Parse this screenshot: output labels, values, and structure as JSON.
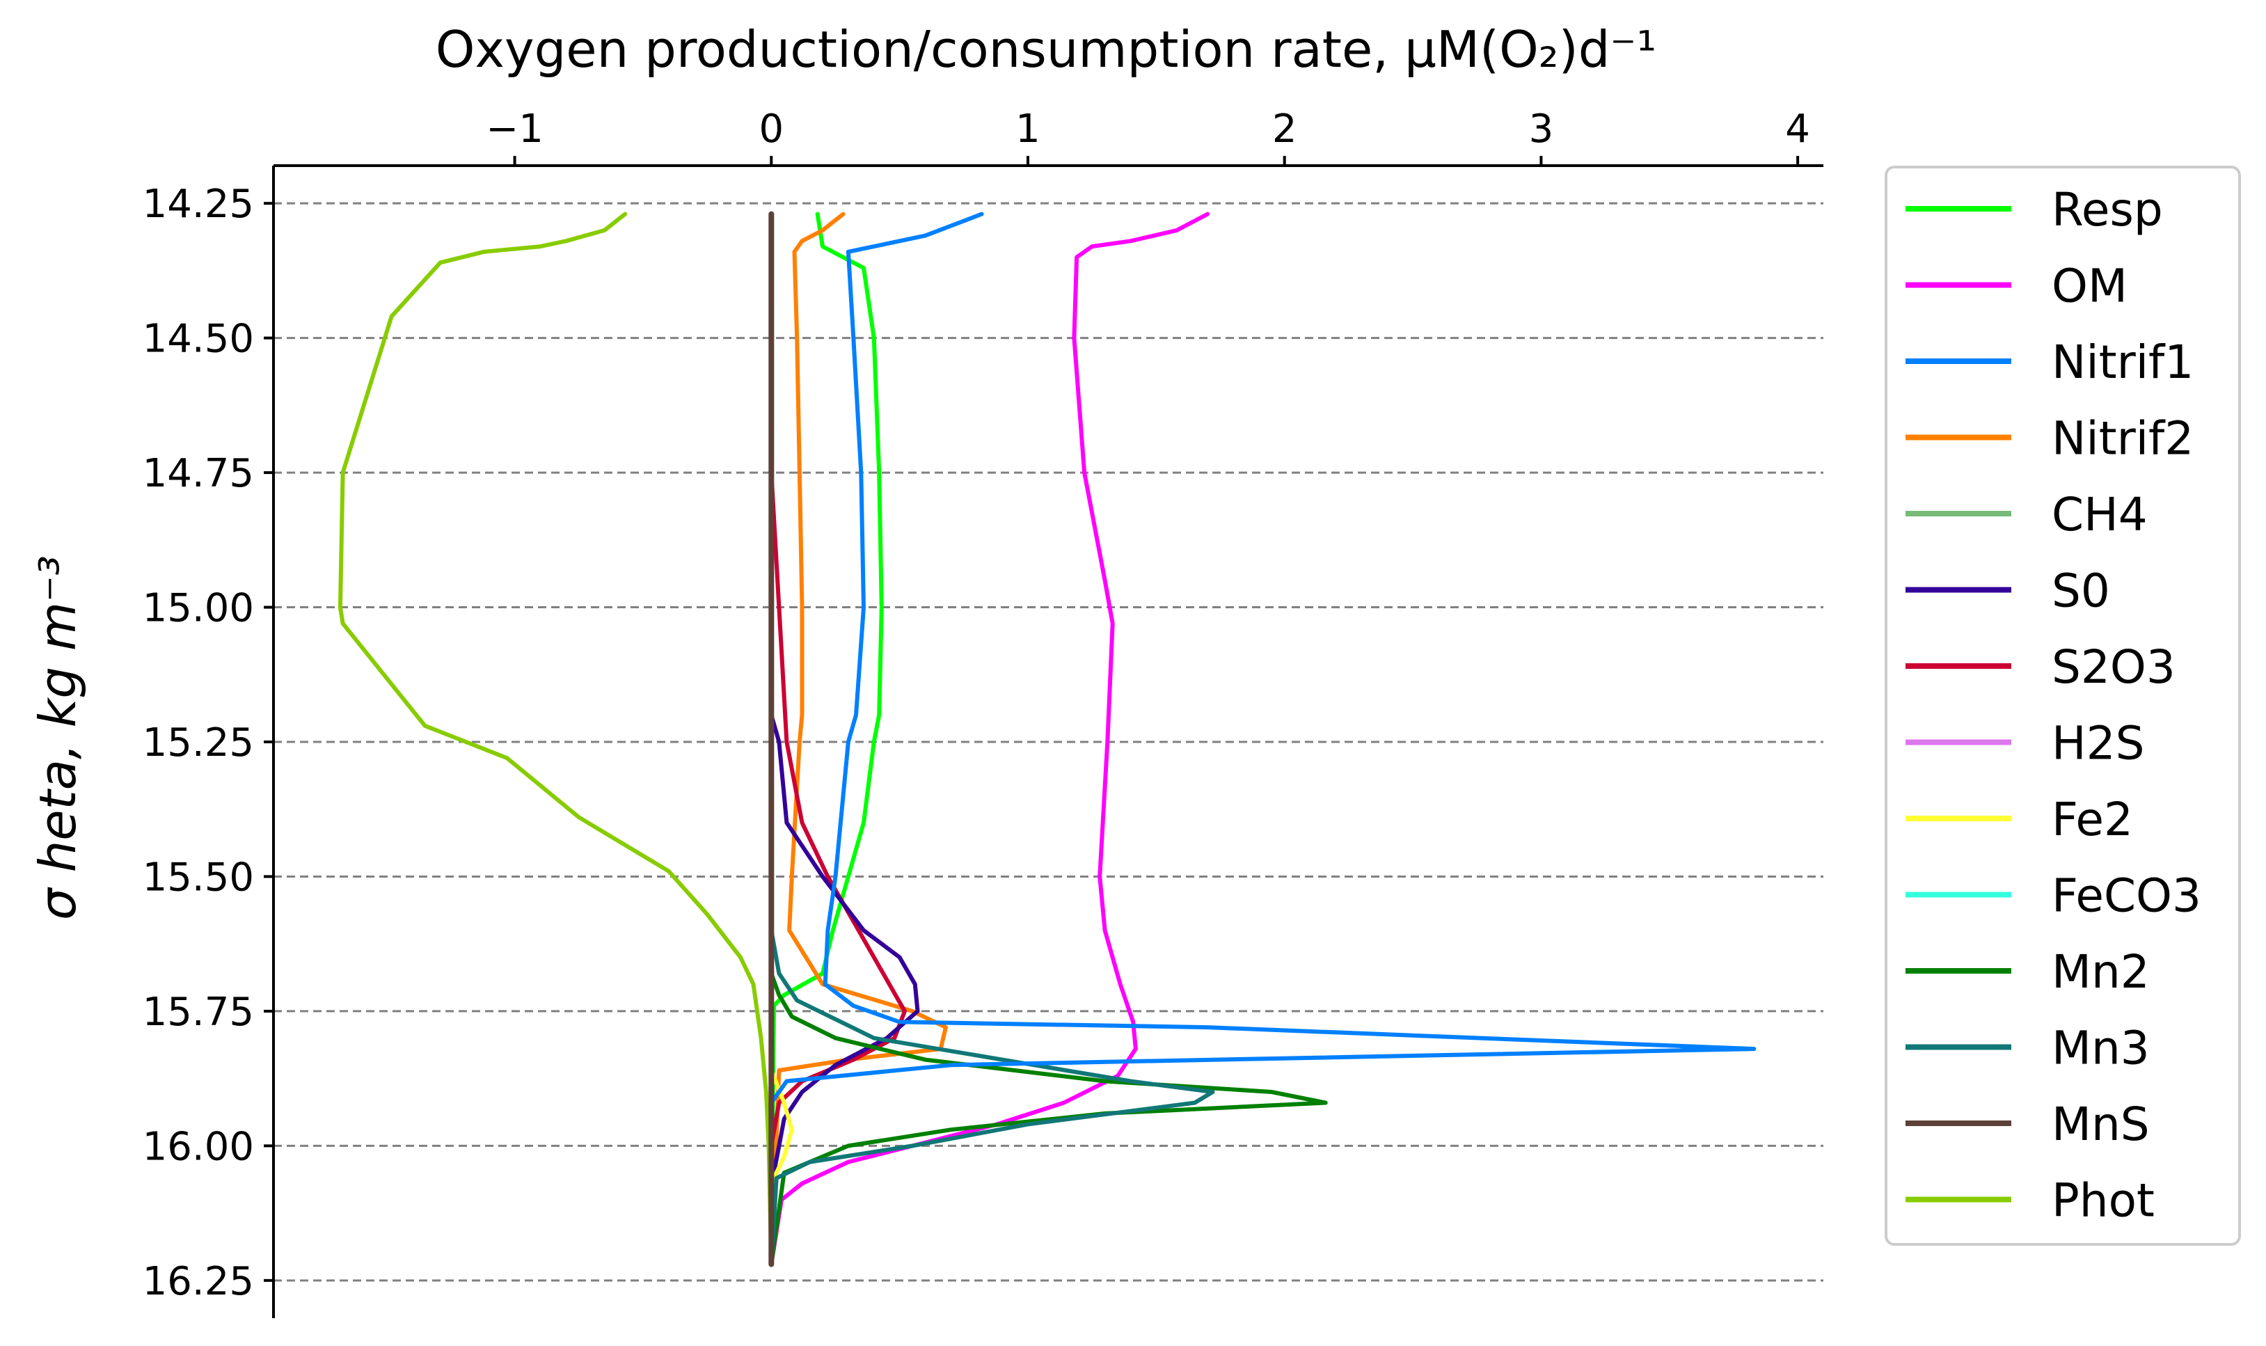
{
  "chart_data": {
    "type": "line",
    "title": "",
    "xlabel": "Oxygen production/consumption rate, μM(O₂)d⁻¹",
    "ylabel": "σ heta, kg m⁻³",
    "xlim": [
      -1.94,
      4.1
    ],
    "ylim": [
      16.32,
      14.18
    ],
    "y_inverted": true,
    "x_axis_position": "top",
    "x_ticks": [
      -1,
      0,
      1,
      2,
      3,
      4
    ],
    "x_tick_labels": [
      "−1",
      "0",
      "1",
      "2",
      "3",
      "4"
    ],
    "y_ticks": [
      14.25,
      14.5,
      14.75,
      15.0,
      15.25,
      15.5,
      15.75,
      16.0,
      16.25
    ],
    "y_tick_labels": [
      "14.25",
      "14.50",
      "14.75",
      "15.00",
      "15.25",
      "15.50",
      "15.75",
      "16.00",
      "16.25"
    ],
    "grid": "horizontal dashed",
    "legend_position": "outside right",
    "series": [
      {
        "name": "Resp",
        "color": "#00ff00",
        "points": [
          [
            0.18,
            14.27
          ],
          [
            0.2,
            14.33
          ],
          [
            0.28,
            14.35
          ],
          [
            0.36,
            14.37
          ],
          [
            0.4,
            14.5
          ],
          [
            0.42,
            14.75
          ],
          [
            0.43,
            15.0
          ],
          [
            0.42,
            15.2
          ],
          [
            0.4,
            15.25
          ],
          [
            0.36,
            15.4
          ],
          [
            0.3,
            15.5
          ],
          [
            0.24,
            15.6
          ],
          [
            0.2,
            15.68
          ],
          [
            0.05,
            15.72
          ],
          [
            0.01,
            15.74
          ],
          [
            0.0,
            16.2
          ]
        ]
      },
      {
        "name": "OM",
        "color": "#ff00ff",
        "points": [
          [
            1.7,
            14.27
          ],
          [
            1.58,
            14.3
          ],
          [
            1.4,
            14.32
          ],
          [
            1.25,
            14.33
          ],
          [
            1.19,
            14.35
          ],
          [
            1.18,
            14.5
          ],
          [
            1.22,
            14.75
          ],
          [
            1.3,
            14.95
          ],
          [
            1.33,
            15.03
          ],
          [
            1.31,
            15.25
          ],
          [
            1.28,
            15.5
          ],
          [
            1.3,
            15.6
          ],
          [
            1.36,
            15.7
          ],
          [
            1.41,
            15.77
          ],
          [
            1.42,
            15.82
          ],
          [
            1.35,
            15.87
          ],
          [
            1.14,
            15.92
          ],
          [
            0.88,
            15.96
          ],
          [
            0.55,
            16.0
          ],
          [
            0.3,
            16.03
          ],
          [
            0.12,
            16.07
          ],
          [
            0.04,
            16.1
          ],
          [
            0.0,
            16.22
          ]
        ]
      },
      {
        "name": "Nitrif1",
        "color": "#0080ff",
        "points": [
          [
            0.82,
            14.27
          ],
          [
            0.6,
            14.31
          ],
          [
            0.4,
            14.33
          ],
          [
            0.3,
            14.34
          ],
          [
            0.32,
            14.5
          ],
          [
            0.35,
            14.75
          ],
          [
            0.36,
            15.0
          ],
          [
            0.33,
            15.2
          ],
          [
            0.3,
            15.25
          ],
          [
            0.25,
            15.5
          ],
          [
            0.22,
            15.6
          ],
          [
            0.21,
            15.7
          ],
          [
            0.32,
            15.74
          ],
          [
            0.5,
            15.77
          ],
          [
            1.7,
            15.78
          ],
          [
            3.83,
            15.82
          ],
          [
            0.7,
            15.85
          ],
          [
            0.06,
            15.88
          ],
          [
            0.0,
            15.92
          ],
          [
            0.0,
            16.22
          ]
        ]
      },
      {
        "name": "Nitrif2",
        "color": "#ff8000",
        "points": [
          [
            0.28,
            14.27
          ],
          [
            0.2,
            14.3
          ],
          [
            0.12,
            14.32
          ],
          [
            0.09,
            14.34
          ],
          [
            0.1,
            14.5
          ],
          [
            0.11,
            14.75
          ],
          [
            0.12,
            15.0
          ],
          [
            0.12,
            15.2
          ],
          [
            0.11,
            15.25
          ],
          [
            0.08,
            15.5
          ],
          [
            0.07,
            15.6
          ],
          [
            0.2,
            15.7
          ],
          [
            0.55,
            15.75
          ],
          [
            0.68,
            15.78
          ],
          [
            0.66,
            15.82
          ],
          [
            0.3,
            15.84
          ],
          [
            0.03,
            15.86
          ],
          [
            0.0,
            16.22
          ]
        ]
      },
      {
        "name": "CH4",
        "color": "#77bb77",
        "points": [
          [
            0.0,
            14.27
          ],
          [
            0.0,
            16.22
          ]
        ]
      },
      {
        "name": "S0",
        "color": "#330099",
        "points": [
          [
            0.0,
            15.2
          ],
          [
            0.03,
            15.25
          ],
          [
            0.06,
            15.4
          ],
          [
            0.2,
            15.5
          ],
          [
            0.36,
            15.6
          ],
          [
            0.5,
            15.65
          ],
          [
            0.56,
            15.7
          ],
          [
            0.57,
            15.75
          ],
          [
            0.45,
            15.8
          ],
          [
            0.25,
            15.85
          ],
          [
            0.12,
            15.9
          ],
          [
            0.05,
            15.95
          ],
          [
            0.03,
            16.0
          ],
          [
            0.01,
            16.05
          ],
          [
            0.0,
            16.22
          ]
        ]
      },
      {
        "name": "S2O3",
        "color": "#cc0033",
        "points": [
          [
            0.0,
            14.75
          ],
          [
            0.03,
            15.0
          ],
          [
            0.06,
            15.25
          ],
          [
            0.12,
            15.4
          ],
          [
            0.22,
            15.5
          ],
          [
            0.34,
            15.6
          ],
          [
            0.46,
            15.7
          ],
          [
            0.52,
            15.75
          ],
          [
            0.48,
            15.8
          ],
          [
            0.32,
            15.84
          ],
          [
            0.12,
            15.88
          ],
          [
            0.03,
            15.92
          ],
          [
            0.0,
            16.0
          ],
          [
            0.0,
            16.22
          ]
        ]
      },
      {
        "name": "H2S",
        "color": "#dd77ee",
        "points": [
          [
            0.0,
            15.5
          ],
          [
            0.0,
            16.22
          ]
        ]
      },
      {
        "name": "Fe2",
        "color": "#ffff33",
        "points": [
          [
            0.0,
            15.86
          ],
          [
            0.05,
            15.92
          ],
          [
            0.08,
            15.97
          ],
          [
            0.05,
            16.02
          ],
          [
            0.01,
            16.06
          ],
          [
            0.0,
            16.22
          ]
        ]
      },
      {
        "name": "FeCO3",
        "color": "#33ffdd",
        "points": [
          [
            0.0,
            15.85
          ],
          [
            0.0,
            16.22
          ]
        ]
      },
      {
        "name": "Mn2",
        "color": "#008000",
        "points": [
          [
            0.0,
            15.68
          ],
          [
            0.03,
            15.72
          ],
          [
            0.08,
            15.76
          ],
          [
            0.25,
            15.8
          ],
          [
            0.6,
            15.84
          ],
          [
            1.3,
            15.88
          ],
          [
            1.95,
            15.9
          ],
          [
            2.16,
            15.92
          ],
          [
            1.3,
            15.94
          ],
          [
            0.7,
            15.97
          ],
          [
            0.3,
            16.0
          ],
          [
            0.05,
            16.05
          ],
          [
            0.0,
            16.22
          ]
        ]
      },
      {
        "name": "Mn3",
        "color": "#117777",
        "points": [
          [
            0.0,
            15.6
          ],
          [
            0.03,
            15.68
          ],
          [
            0.1,
            15.73
          ],
          [
            0.4,
            15.8
          ],
          [
            0.9,
            15.84
          ],
          [
            1.4,
            15.88
          ],
          [
            1.72,
            15.9
          ],
          [
            1.65,
            15.92
          ],
          [
            1.0,
            15.96
          ],
          [
            0.55,
            16.0
          ],
          [
            0.15,
            16.03
          ],
          [
            0.02,
            16.06
          ],
          [
            0.0,
            16.22
          ]
        ]
      },
      {
        "name": "MnS",
        "color": "#5d4037",
        "points": [
          [
            0.0,
            14.27
          ],
          [
            0.0,
            16.22
          ]
        ]
      },
      {
        "name": "Phot",
        "color": "#88cc00",
        "points": [
          [
            -0.57,
            14.27
          ],
          [
            -0.65,
            14.3
          ],
          [
            -0.8,
            14.32
          ],
          [
            -0.9,
            14.33
          ],
          [
            -1.12,
            14.34
          ],
          [
            -1.29,
            14.36
          ],
          [
            -1.48,
            14.46
          ],
          [
            -1.67,
            14.75
          ],
          [
            -1.68,
            15.0
          ],
          [
            -1.67,
            15.03
          ],
          [
            -1.35,
            15.22
          ],
          [
            -1.03,
            15.28
          ],
          [
            -0.75,
            15.39
          ],
          [
            -0.4,
            15.49
          ],
          [
            -0.25,
            15.57
          ],
          [
            -0.12,
            15.65
          ],
          [
            -0.07,
            15.7
          ],
          [
            -0.04,
            15.8
          ],
          [
            -0.02,
            15.9
          ],
          [
            -0.01,
            16.0
          ],
          [
            0.0,
            16.22
          ]
        ]
      }
    ]
  }
}
